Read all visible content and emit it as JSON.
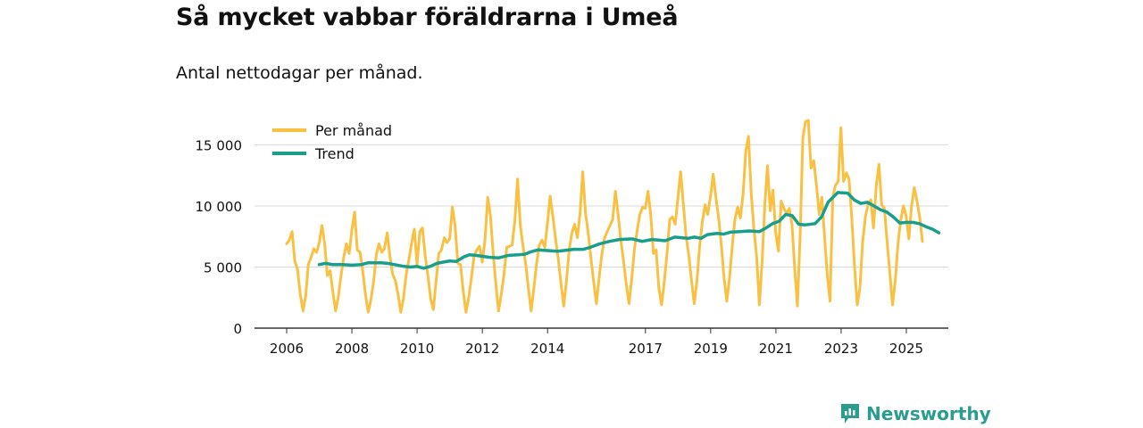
{
  "header": {
    "title": "Så mycket vabbar föräldrarna i Umeå",
    "subtitle": "Antal nettodagar per månad."
  },
  "brand": {
    "name": "Newsworthy",
    "icon": "newsworthy-logo-icon"
  },
  "colors": {
    "monthly": "#f9c042",
    "trend": "#1a9e8c",
    "grid": "#d9d9d9",
    "axis": "#333333",
    "brand": "#2a9d8f"
  },
  "chart_data": {
    "type": "line",
    "title": "Så mycket vabbar föräldrarna i Umeå",
    "subtitle": "Antal nettodagar per månad.",
    "xlabel": "",
    "ylabel": "",
    "xlim": [
      2005.5,
      2026.2
    ],
    "ylim": [
      0,
      17000
    ],
    "yticks": [
      0,
      5000,
      10000,
      15000
    ],
    "ytick_labels": [
      "0",
      "5 000",
      "10 000",
      "15 000"
    ],
    "xticks": [
      2006,
      2008,
      2010,
      2012,
      2014,
      2017,
      2019,
      2021,
      2023,
      2025
    ],
    "xtick_labels": [
      "2006",
      "2008",
      "2010",
      "2012",
      "2014",
      "2017",
      "2019",
      "2021",
      "2023",
      "2025"
    ],
    "grid": true,
    "legend_position": "top-left",
    "series": [
      {
        "name": "Per månad",
        "start": 2006.0,
        "step": 0.0833,
        "values": [
          6900,
          7200,
          7900,
          5500,
          4800,
          2800,
          1400,
          2600,
          5200,
          5800,
          6500,
          6200,
          7000,
          8400,
          6900,
          4300,
          4700,
          3000,
          1400,
          2500,
          4300,
          5800,
          6900,
          6100,
          8000,
          9500,
          6400,
          6200,
          4700,
          2800,
          1300,
          2300,
          3800,
          6000,
          6900,
          6200,
          6500,
          7800,
          5900,
          4400,
          3900,
          2800,
          1300,
          2400,
          4400,
          5600,
          7000,
          8100,
          5200,
          7900,
          8200,
          5900,
          4300,
          2400,
          1500,
          3800,
          6100,
          6400,
          7400,
          7000,
          7300,
          9900,
          8400,
          5300,
          5200,
          3000,
          1300,
          2500,
          4100,
          5900,
          6400,
          6700,
          5400,
          7200,
          10700,
          9200,
          6200,
          3600,
          1400,
          2800,
          4400,
          6600,
          6700,
          6800,
          8800,
          12200,
          8400,
          6700,
          5200,
          3200,
          1400,
          3300,
          5300,
          6800,
          7200,
          6600,
          8600,
          10800,
          9100,
          7300,
          5600,
          3600,
          1800,
          3900,
          6400,
          7800,
          8500,
          7400,
          9400,
          12800,
          9400,
          7800,
          5700,
          3800,
          2000,
          4100,
          6000,
          7400,
          7900,
          8400,
          8900,
          11200,
          9300,
          7200,
          5500,
          3600,
          2000,
          4000,
          6500,
          8000,
          9300,
          9900,
          9800,
          11200,
          9300,
          6100,
          6400,
          3300,
          1900,
          3800,
          6100,
          8900,
          9100,
          8500,
          10600,
          12800,
          10200,
          7500,
          6000,
          3900,
          2000,
          3800,
          6700,
          8700,
          10100,
          9300,
          10800,
          12600,
          10700,
          9000,
          6800,
          4100,
          2200,
          4100,
          6700,
          8900,
          9900,
          9000,
          11000,
          14500,
          15700,
          11000,
          8100,
          5800,
          1900,
          5500,
          10100,
          13300,
          9600,
          11300,
          7800,
          6300,
          10400,
          9800,
          9400,
          9800,
          8500,
          4800,
          1800,
          7700,
          15600,
          16900,
          17000,
          13100,
          13700,
          11700,
          9300,
          10700,
          7500,
          4300,
          2200,
          10700,
          11700,
          12000,
          16400,
          12000,
          12700,
          12200,
          9000,
          5100,
          1900,
          3300,
          7000,
          9100,
          10100,
          10500,
          8200,
          11700,
          13400,
          10100,
          9800,
          7100,
          4500,
          1900,
          3900,
          6900,
          8800,
          10000,
          9200,
          7300,
          10000,
          11500,
          10400,
          9100,
          7100
        ]
      },
      {
        "name": "Trend",
        "points": [
          [
            2007.0,
            5200
          ],
          [
            2007.2,
            5300
          ],
          [
            2007.4,
            5200
          ],
          [
            2007.7,
            5200
          ],
          [
            2008.0,
            5150
          ],
          [
            2008.3,
            5200
          ],
          [
            2008.5,
            5350
          ],
          [
            2008.9,
            5350
          ],
          [
            2009.1,
            5300
          ],
          [
            2009.3,
            5200
          ],
          [
            2009.6,
            5050
          ],
          [
            2009.8,
            5000
          ],
          [
            2010.0,
            5050
          ],
          [
            2010.2,
            4900
          ],
          [
            2010.4,
            5050
          ],
          [
            2010.6,
            5300
          ],
          [
            2010.8,
            5400
          ],
          [
            2011.0,
            5500
          ],
          [
            2011.2,
            5450
          ],
          [
            2011.45,
            5850
          ],
          [
            2011.6,
            6000
          ],
          [
            2011.8,
            5950
          ],
          [
            2012.2,
            5800
          ],
          [
            2012.5,
            5750
          ],
          [
            2012.8,
            5950
          ],
          [
            2013.1,
            6000
          ],
          [
            2013.3,
            6050
          ],
          [
            2013.5,
            6250
          ],
          [
            2013.7,
            6400
          ],
          [
            2014.0,
            6350
          ],
          [
            2014.3,
            6300
          ],
          [
            2014.5,
            6350
          ],
          [
            2014.8,
            6450
          ],
          [
            2015.1,
            6450
          ],
          [
            2015.3,
            6600
          ],
          [
            2015.6,
            6900
          ],
          [
            2015.9,
            7100
          ],
          [
            2016.2,
            7250
          ],
          [
            2016.6,
            7300
          ],
          [
            2016.9,
            7100
          ],
          [
            2017.2,
            7250
          ],
          [
            2017.4,
            7200
          ],
          [
            2017.6,
            7150
          ],
          [
            2017.9,
            7450
          ],
          [
            2018.1,
            7400
          ],
          [
            2018.3,
            7350
          ],
          [
            2018.5,
            7450
          ],
          [
            2018.7,
            7350
          ],
          [
            2018.9,
            7650
          ],
          [
            2019.2,
            7750
          ],
          [
            2019.4,
            7700
          ],
          [
            2019.6,
            7850
          ],
          [
            2019.9,
            7900
          ],
          [
            2020.2,
            7950
          ],
          [
            2020.5,
            7900
          ],
          [
            2020.7,
            8200
          ],
          [
            2020.9,
            8550
          ],
          [
            2021.1,
            8750
          ],
          [
            2021.3,
            9300
          ],
          [
            2021.5,
            9200
          ],
          [
            2021.7,
            8500
          ],
          [
            2021.9,
            8450
          ],
          [
            2022.2,
            8550
          ],
          [
            2022.4,
            9100
          ],
          [
            2022.6,
            10300
          ],
          [
            2022.9,
            11100
          ],
          [
            2023.2,
            11050
          ],
          [
            2023.4,
            10500
          ],
          [
            2023.6,
            10200
          ],
          [
            2023.8,
            10300
          ],
          [
            2024.0,
            10000
          ],
          [
            2024.2,
            9700
          ],
          [
            2024.4,
            9500
          ],
          [
            2024.6,
            9100
          ],
          [
            2024.8,
            8600
          ],
          [
            2025.0,
            8650
          ],
          [
            2025.2,
            8650
          ],
          [
            2025.4,
            8550
          ],
          [
            2025.6,
            8300
          ],
          [
            2025.8,
            8100
          ],
          [
            2026.0,
            7800
          ]
        ]
      }
    ]
  }
}
